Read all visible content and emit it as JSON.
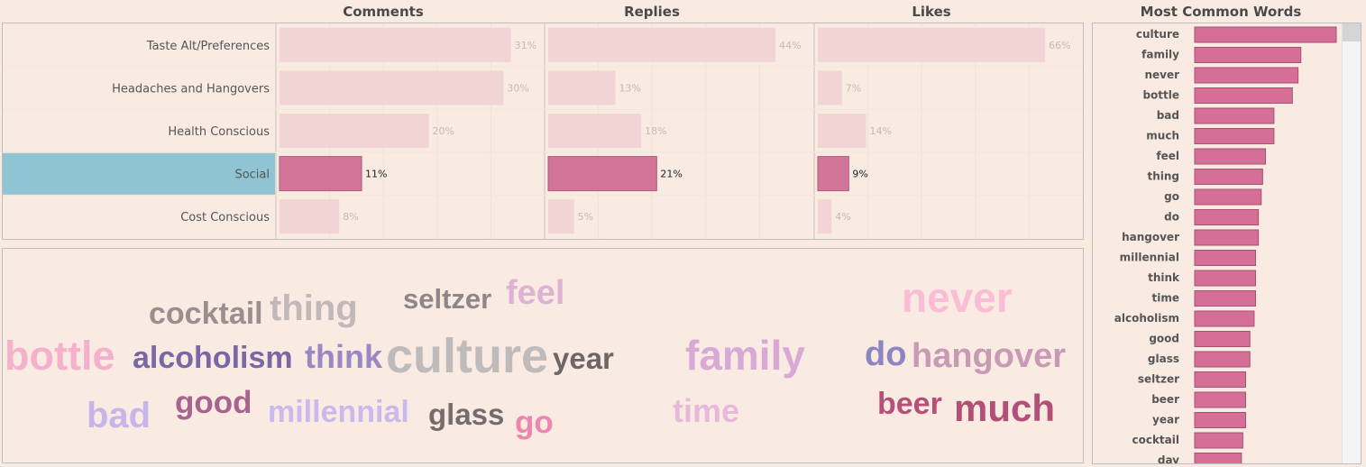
{
  "headers": {
    "comments": "Comments",
    "replies": "Replies",
    "likes": "Likes",
    "most_common_words": "Most Common Words"
  },
  "colors": {
    "background": "#f9ebe2",
    "bar_faded": "#f1d4d4",
    "bar_highlight": "#d37598",
    "row_highlight": "#8fc4d4",
    "word_bar": "#d56f97"
  },
  "selected_category": "Social",
  "chart_data": [
    {
      "type": "bar",
      "orientation": "horizontal",
      "title": "Comments",
      "categories": [
        "Taste Alt/Preferences",
        "Headaches and Hangovers",
        "Health Conscious",
        "Social",
        "Cost Conscious"
      ],
      "values": [
        31,
        30,
        20,
        11,
        8
      ],
      "labels": [
        "31%",
        "30%",
        "20%",
        "11%",
        "8%"
      ],
      "xlim": [
        0,
        36
      ]
    },
    {
      "type": "bar",
      "orientation": "horizontal",
      "title": "Replies",
      "categories": [
        "Taste Alt/Preferences",
        "Headaches and Hangovers",
        "Health Conscious",
        "Social",
        "Cost Conscious"
      ],
      "values": [
        44,
        13,
        18,
        21,
        5
      ],
      "labels": [
        "44%",
        "13%",
        "18%",
        "21%",
        "5%"
      ],
      "xlim": [
        0,
        52
      ]
    },
    {
      "type": "bar",
      "orientation": "horizontal",
      "title": "Likes",
      "categories": [
        "Taste Alt/Preferences",
        "Headaches and Hangovers",
        "Health Conscious",
        "Social",
        "Cost Conscious"
      ],
      "values": [
        66,
        7,
        14,
        9,
        4
      ],
      "labels": [
        "66%",
        "7%",
        "14%",
        "9%",
        "4%"
      ],
      "xlim": [
        0,
        78
      ]
    },
    {
      "type": "bar",
      "orientation": "horizontal",
      "title": "Most Common Words",
      "categories": [
        "culture",
        "family",
        "never",
        "bottle",
        "bad",
        "much",
        "feel",
        "thing",
        "go",
        "do",
        "hangover",
        "millennial",
        "think",
        "time",
        "alcoholism",
        "good",
        "glass",
        "seltzer",
        "beer",
        "year",
        "cocktail",
        "day"
      ],
      "values": [
        100,
        75,
        73,
        69,
        56,
        56,
        50,
        48,
        47,
        45,
        45,
        43,
        43,
        43,
        42,
        39,
        39,
        36,
        36,
        36,
        34,
        33
      ]
    }
  ],
  "word_cloud": [
    {
      "text": "cocktail",
      "size": 34,
      "color": "#9b8e8e"
    },
    {
      "text": "thing",
      "size": 40,
      "color": "#c2b8b8"
    },
    {
      "text": "seltzer",
      "size": 31,
      "color": "#8e8787"
    },
    {
      "text": "feel",
      "size": 38,
      "color": "#ddb2d4"
    },
    {
      "text": "never",
      "size": 46,
      "color": "#fbbcd6"
    },
    {
      "text": "bottle",
      "size": 45,
      "color": "#f5b1cc"
    },
    {
      "text": "alcoholism",
      "size": 34,
      "color": "#7a67a6"
    },
    {
      "text": "think",
      "size": 36,
      "color": "#9a88c4"
    },
    {
      "text": "culture",
      "size": 54,
      "color": "#c0bbbb"
    },
    {
      "text": "year",
      "size": 33,
      "color": "#6e6666"
    },
    {
      "text": "family",
      "size": 46,
      "color": "#d8a9d6"
    },
    {
      "text": "do",
      "size": 38,
      "color": "#8c85c4"
    },
    {
      "text": "hangover",
      "size": 38,
      "color": "#c99ab6"
    },
    {
      "text": "bad",
      "size": 40,
      "color": "#c6b4ea"
    },
    {
      "text": "good",
      "size": 35,
      "color": "#a7648e"
    },
    {
      "text": "millennial",
      "size": 34,
      "color": "#c9b9ec"
    },
    {
      "text": "glass",
      "size": 33,
      "color": "#756d6d"
    },
    {
      "text": "go",
      "size": 35,
      "color": "#ec86ad"
    },
    {
      "text": "time",
      "size": 36,
      "color": "#e6b9da"
    },
    {
      "text": "beer",
      "size": 34,
      "color": "#b84f78"
    },
    {
      "text": "much",
      "size": 42,
      "color": "#b34f76"
    }
  ]
}
